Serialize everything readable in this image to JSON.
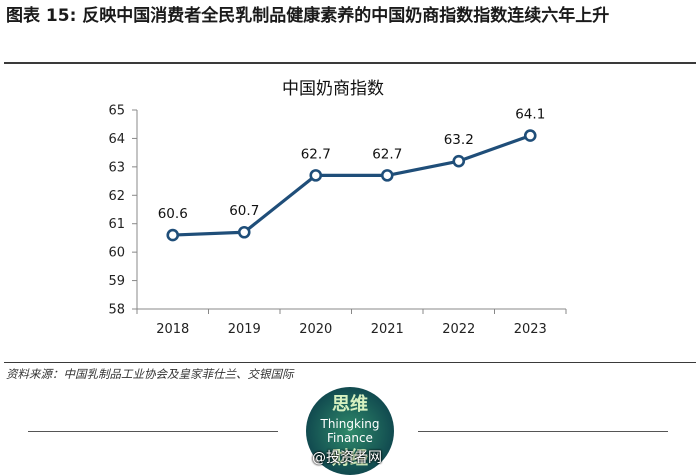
{
  "figure_title": "图表 15: 反映中国消费者全民乳制品健康素养的中国奶商指数指数连续六年上升",
  "source_note": "资料来源：中国乳制品工业协会及皇家菲仕兰、交银国际",
  "logo": {
    "line1": "思维",
    "line2": "Thingking",
    "line3": "Finance",
    "line4": "财经"
  },
  "watermark": "@投资者网",
  "colors": {
    "line": "#1f4e79",
    "axis": "#888888"
  },
  "chart_data": {
    "type": "line",
    "title": "中国奶商指数",
    "categories": [
      "2018",
      "2019",
      "2020",
      "2021",
      "2022",
      "2023"
    ],
    "values": [
      60.6,
      60.7,
      62.7,
      62.7,
      63.2,
      64.1
    ],
    "value_labels": [
      "60.6",
      "60.7",
      "62.7",
      "62.7",
      "63.2",
      "64.1"
    ],
    "ylim": [
      58,
      65
    ],
    "yticks": [
      58,
      59,
      60,
      61,
      62,
      63,
      64,
      65
    ],
    "grid": false,
    "legend": "none"
  }
}
